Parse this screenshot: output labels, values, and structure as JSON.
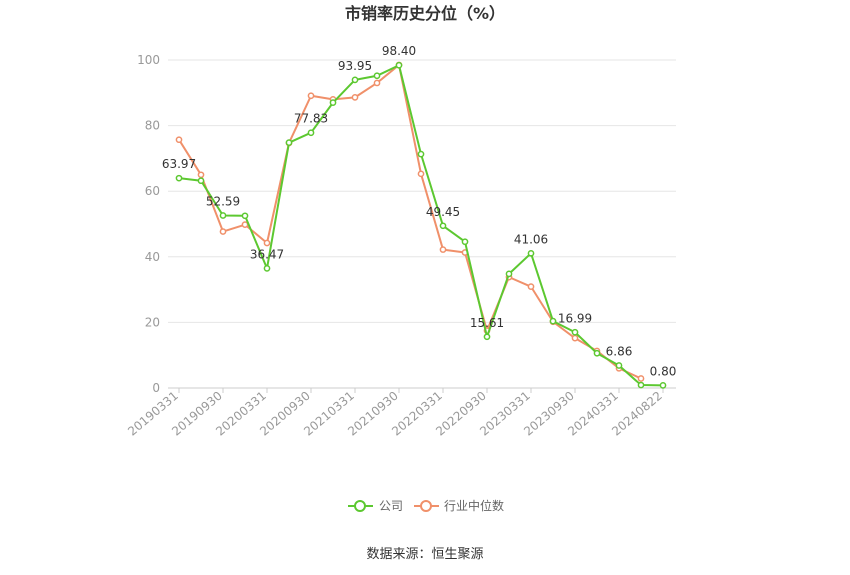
{
  "chart_data": {
    "type": "line",
    "title": "市销率历史分位（%）",
    "ylim": [
      0,
      100
    ],
    "yticks": [
      0,
      20,
      40,
      60,
      80,
      100
    ],
    "x": [
      "20190331",
      "20190630",
      "20190930",
      "20191231",
      "20200331",
      "20200630",
      "20200930",
      "20201231",
      "20210331",
      "20210630",
      "20210930",
      "20211231",
      "20220331",
      "20220630",
      "20220930",
      "20221231",
      "20230331",
      "20230630",
      "20230930",
      "20231231",
      "20240331",
      "20240630",
      "20240822"
    ],
    "xtick_labels": [
      "20190331",
      "20190930",
      "20200331",
      "20200930",
      "20210331",
      "20210930",
      "20220331",
      "20220930",
      "20230331",
      "20230930",
      "20240331",
      "20240822"
    ],
    "series": [
      {
        "name": "公司",
        "color": "#5cc830",
        "values": [
          63.97,
          63.2,
          52.59,
          52.5,
          36.47,
          74.8,
          77.83,
          87.0,
          93.95,
          95.2,
          98.4,
          71.3,
          49.45,
          44.6,
          15.61,
          34.8,
          41.06,
          20.4,
          16.99,
          10.6,
          6.86,
          0.9,
          0.8
        ]
      },
      {
        "name": "行业中位数",
        "color": "#f0906a",
        "values": [
          75.7,
          65.0,
          47.7,
          49.8,
          44.2,
          74.7,
          89.1,
          88.0,
          88.6,
          93.0,
          98.5,
          65.3,
          42.2,
          41.3,
          17.5,
          33.8,
          30.9,
          20.2,
          15.2,
          11.3,
          6.0,
          2.9,
          null
        ]
      }
    ],
    "data_labels": [
      {
        "index": 0,
        "text": "63.97"
      },
      {
        "index": 2,
        "text": "52.59"
      },
      {
        "index": 4,
        "text": "36.47"
      },
      {
        "index": 6,
        "text": "77.83"
      },
      {
        "index": 8,
        "text": "93.95"
      },
      {
        "index": 10,
        "text": "98.40"
      },
      {
        "index": 12,
        "text": "49.45"
      },
      {
        "index": 14,
        "text": "15.61"
      },
      {
        "index": 16,
        "text": "41.06"
      },
      {
        "index": 18,
        "text": "16.99"
      },
      {
        "index": 20,
        "text": "6.86"
      },
      {
        "index": 22,
        "text": "0.80"
      }
    ],
    "legend_position": "bottom-center",
    "grid": true
  },
  "source": "数据来源：恒生聚源"
}
